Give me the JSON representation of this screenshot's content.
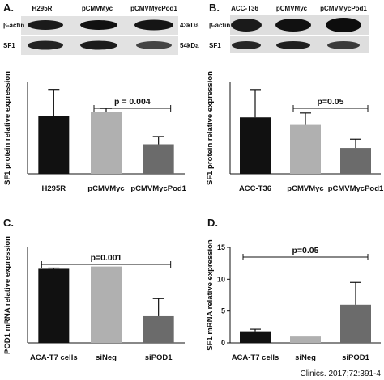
{
  "citation": "Clinics. 2017;72:391-4",
  "blots": [
    {
      "letter": "A.",
      "lanes": [
        "H295R",
        "pCMVMyc",
        "pCMVMycPod1"
      ],
      "rows": [
        "β-actin",
        "SF1"
      ],
      "sizes": [
        "43kDa",
        "54kDa"
      ]
    },
    {
      "letter": "B.",
      "lanes": [
        "ACC-T36",
        "pCMVMyc",
        "pCMVMycPod1"
      ],
      "rows": [
        "β-actin",
        "SF1"
      ],
      "sizes": []
    }
  ],
  "chart_data": [
    {
      "type": "bar",
      "letter": "",
      "ylabel": "SF1 protein relative expression",
      "categories": [
        "H295R",
        "pCMVMyc",
        "pCMVMycPod1"
      ],
      "values": [
        0.82,
        0.88,
        0.42
      ],
      "errors": [
        0.38,
        0.05,
        0.11
      ],
      "colors": [
        "#111111",
        "#b0b0b0",
        "#6b6b6b"
      ],
      "yticks": [],
      "ylim": [
        0,
        1.3
      ],
      "annotation": {
        "text": "p = 0.004",
        "from": 1,
        "to": 2
      }
    },
    {
      "type": "bar",
      "letter": "",
      "ylabel": "SF1 protein relative expression",
      "categories": [
        "ACC-T36",
        "pCMVMyc",
        "pCMVMycPod1"
      ],
      "values": [
        1.42,
        1.25,
        0.65
      ],
      "errors": [
        0.7,
        0.28,
        0.22
      ],
      "colors": [
        "#111111",
        "#b0b0b0",
        "#6b6b6b"
      ],
      "yticks": [],
      "ylim": [
        0,
        2.3
      ],
      "annotation": {
        "text": "p=0.05",
        "from": 1,
        "to": 2
      }
    },
    {
      "type": "bar",
      "letter": "C.",
      "ylabel": "POD1 mRNA relative expression",
      "categories": [
        "ACA-T7 cells",
        "siNeg",
        "siPOD1"
      ],
      "values": [
        0.97,
        1.0,
        0.35
      ],
      "errors": [
        0.01,
        0.0,
        0.23
      ],
      "colors": [
        "#111111",
        "#b0b0b0",
        "#6b6b6b"
      ],
      "yticks": [],
      "ylim": [
        0,
        1.25
      ],
      "annotation": {
        "text": "p=0.001",
        "from": 0,
        "to": 2
      }
    },
    {
      "type": "bar",
      "letter": "D.",
      "ylabel": "SF1 mRNA relative expression",
      "categories": [
        "ACA-T7 cells",
        "siNeg",
        "siPOD1"
      ],
      "values": [
        1.7,
        1.0,
        6.0
      ],
      "errors": [
        0.45,
        0.0,
        3.5
      ],
      "colors": [
        "#111111",
        "#b0b0b0",
        "#6b6b6b"
      ],
      "yticks": [
        "0",
        "5",
        "10",
        "15"
      ],
      "ylim": [
        0,
        15
      ],
      "annotation": {
        "text": "p=0.05",
        "from": 0,
        "to": 2
      }
    }
  ]
}
